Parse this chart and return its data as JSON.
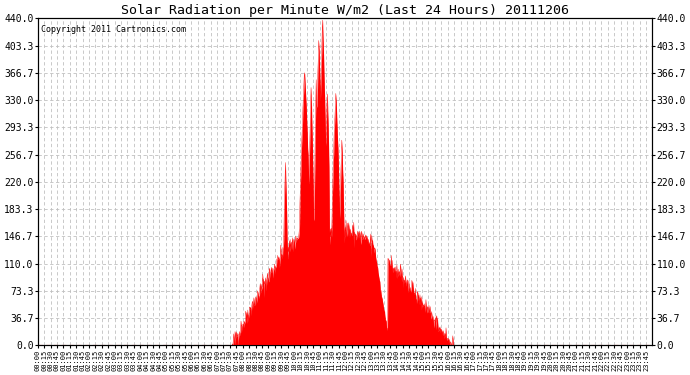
{
  "title": "Solar Radiation per Minute W/m2 (Last 24 Hours) 20111206",
  "copyright": "Copyright 2011 Cartronics.com",
  "fill_color": "#ff0000",
  "line_color": "#ff0000",
  "bg_color": "#ffffff",
  "plot_bg_color": "#ffffff",
  "grid_color": "#c0c0c0",
  "grid_style": "--",
  "yticks": [
    0.0,
    36.7,
    73.3,
    110.0,
    146.7,
    183.3,
    220.0,
    256.7,
    293.3,
    330.0,
    366.7,
    403.3,
    440.0
  ],
  "ylim": [
    0,
    440
  ],
  "num_minutes": 1440,
  "seed": 42
}
